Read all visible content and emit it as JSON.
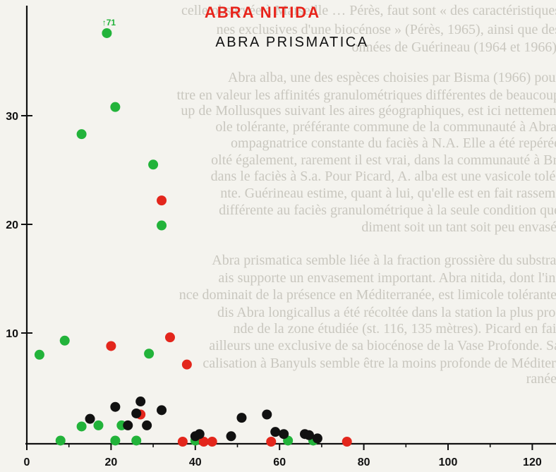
{
  "background_text": [
    "celle observée à Marseille … Pérès, faut sont « des caractéristiques",
    "nes exclusives d'une biocénose » (Pérès, 1965), ainsi que des",
    "onnées de Guérineau (1964 et 1966).",
    "Abra alba, une des espèces choisies par Bisma (1966) pour",
    "ttre en valeur les affinités granulométriques différentes de beaucoup",
    "up de Mollusques suivant les aires géographiques, est ici nettement",
    "ole tolérante, préférante commune de la communauté à Abra,",
    "ompagnatrice constante du faciès à N.A. Elle a été repérée",
    "olté également, rarement il est vrai, dans la communauté à Br.",
    "dans le faciès à S.a. Pour Picard, A. alba est une vasicole tolé-",
    "nte. Guérineau estime, quant à lui, qu'elle est en fait rassem-",
    "différente au faciès granulométrique à la seule condition que",
    "diment soit un tant soit peu envasé.",
    "",
    "Abra prismatica semble liée à la fraction grossière du substrat",
    "ais supporte un envasement important. Abra nitida, dont l'in-",
    "nce dominait de la présence en Méditerranée, est limicole tolérante.",
    "dis Abra longicallus a été récoltée dans la station la plus pro-",
    "nde de la zone étudiée (st. 116, 135 mètres). Picard en fait",
    "ailleurs une exclusive de sa biocénose de la Vase Profonde. Sa",
    "calisation à Banyuls semble être la moins profonde de Méditer-",
    "ranée."
  ],
  "chart_data": {
    "type": "scatter",
    "title": "ABRA NITIDA",
    "subtitle": "ABRA PRISMATICA",
    "xlabel": "",
    "ylabel": "",
    "xlim": [
      -5,
      127
    ],
    "ylim": [
      0,
      38
    ],
    "x_ticks": [
      0,
      20,
      40,
      60,
      80,
      100,
      120
    ],
    "y_ticks": [
      10,
      20,
      30
    ],
    "grid": false,
    "colors": {
      "title": "#e8241b",
      "subtitle": "#111111",
      "green": "#22b33a",
      "red": "#e3261c",
      "black": "#111111",
      "axis": "#111111"
    },
    "annotation": {
      "text": "↑71",
      "x": 19,
      "y": 37.8,
      "color": "#22b33a"
    },
    "series": [
      {
        "color": "green",
        "points": [
          [
            19,
            37.6
          ],
          [
            21,
            30.8
          ],
          [
            13,
            28.3
          ],
          [
            30,
            25.5
          ],
          [
            32,
            19.9
          ],
          [
            9,
            9.3
          ],
          [
            3,
            8.0
          ],
          [
            29,
            8.1
          ],
          [
            22.5,
            1.5
          ],
          [
            17,
            1.5
          ],
          [
            13,
            1.4
          ],
          [
            8,
            0.1
          ],
          [
            21,
            0.1
          ],
          [
            26,
            0.1
          ],
          [
            40,
            0.1
          ],
          [
            62,
            0.1
          ],
          [
            68,
            0.1
          ]
        ]
      },
      {
        "color": "red",
        "points": [
          [
            32,
            22.2
          ],
          [
            34,
            9.6
          ],
          [
            20,
            8.8
          ],
          [
            38,
            7.1
          ],
          [
            27,
            2.5
          ],
          [
            37,
            0
          ],
          [
            42,
            0
          ],
          [
            44,
            0
          ],
          [
            58,
            0
          ],
          [
            76,
            0
          ]
        ]
      },
      {
        "color": "black",
        "points": [
          [
            40,
            0.5
          ],
          [
            41,
            0.7
          ],
          [
            48.5,
            0.5
          ],
          [
            59,
            0.9
          ],
          [
            61,
            0.7
          ],
          [
            66,
            0.7
          ],
          [
            67,
            0.6
          ],
          [
            69,
            0.3
          ],
          [
            51,
            2.2
          ],
          [
            57,
            2.5
          ],
          [
            21,
            3.2
          ],
          [
            15,
            2.1
          ],
          [
            27,
            3.7
          ],
          [
            26,
            2.6
          ],
          [
            24,
            1.5
          ],
          [
            28.5,
            1.5
          ],
          [
            32,
            2.9
          ]
        ]
      }
    ]
  }
}
